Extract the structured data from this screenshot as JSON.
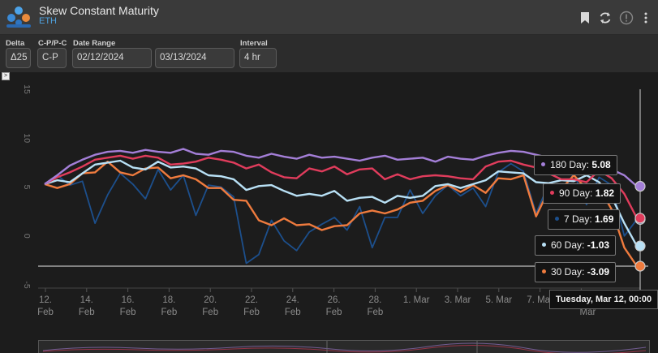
{
  "app": {
    "title": "Skew Constant Maturity",
    "asset": "ETH"
  },
  "controls": {
    "delta": {
      "label": "Delta",
      "value": "Δ25"
    },
    "cp": {
      "label": "C-P/P-C",
      "value": "C-P"
    },
    "date_range": {
      "label": "Date Range",
      "start": "02/12/2024",
      "end": "03/13/2024"
    },
    "interval": {
      "label": "Interval",
      "value": "4 hr"
    }
  },
  "toolbar_icons": [
    "bookmark-icon",
    "refresh-icon",
    "info-icon",
    "more-icon"
  ],
  "expand_label": ">",
  "chart_data": {
    "type": "line",
    "ylim": [
      -5,
      15
    ],
    "y_ticks": [
      "15",
      "10",
      "5",
      "0",
      "-5"
    ],
    "x_ticks": [
      {
        "line1": "12.",
        "line2": "Feb"
      },
      {
        "line1": "14.",
        "line2": "Feb"
      },
      {
        "line1": "16.",
        "line2": "Feb"
      },
      {
        "line1": "18.",
        "line2": "Feb"
      },
      {
        "line1": "20.",
        "line2": "Feb"
      },
      {
        "line1": "22.",
        "line2": "Feb"
      },
      {
        "line1": "24.",
        "line2": "Feb"
      },
      {
        "line1": "26.",
        "line2": "Feb"
      },
      {
        "line1": "28.",
        "line2": "Feb"
      },
      {
        "line1": "1. Mar",
        "line2": ""
      },
      {
        "line1": "3. Mar",
        "line2": ""
      },
      {
        "line1": "5. Mar",
        "line2": ""
      },
      {
        "line1": "7. Mar",
        "line2": ""
      },
      {
        "line1": "",
        "line2": "Mar"
      }
    ],
    "hover_date": "Tuesday, Mar 12, 00:00",
    "series": [
      {
        "name": "180 Day",
        "color": "#a47fd8",
        "current": "5.08",
        "values": [
          5.3,
          6.2,
          7.2,
          7.8,
          8.3,
          8.6,
          8.7,
          8.5,
          8.8,
          8.6,
          8.5,
          8.9,
          8.4,
          8.3,
          8.7,
          8.6,
          8.2,
          8.0,
          8.4,
          8.1,
          7.9,
          8.3,
          8.0,
          8.1,
          7.9,
          7.7,
          8.0,
          8.2,
          7.8,
          7.9,
          8.0,
          7.6,
          8.1,
          7.9,
          7.8,
          8.2,
          8.5,
          8.7,
          8.6,
          8.3,
          8.0,
          7.7,
          7.6,
          7.2,
          7.0,
          6.8,
          6.2,
          5.08
        ]
      },
      {
        "name": "90 Day",
        "color": "#e03c5c",
        "current": "1.82",
        "values": [
          5.3,
          6.0,
          6.5,
          7.1,
          7.8,
          8.0,
          8.2,
          7.9,
          8.2,
          8.0,
          7.3,
          7.4,
          7.6,
          8.0,
          7.8,
          7.5,
          6.9,
          7.3,
          6.5,
          6.0,
          5.9,
          6.9,
          6.6,
          7.1,
          6.3,
          6.8,
          6.9,
          5.8,
          6.3,
          5.8,
          6.1,
          6.2,
          6.1,
          5.9,
          5.8,
          7.1,
          7.6,
          7.7,
          7.3,
          7.0,
          6.4,
          5.8,
          5.8,
          5.5,
          6.7,
          5.9,
          4.3,
          1.82
        ]
      },
      {
        "name": "7 Day",
        "color": "#1c4f8c",
        "current": "1.69",
        "values": [
          5.3,
          6.2,
          5.2,
          5.6,
          1.3,
          4.2,
          6.4,
          5.3,
          3.8,
          6.8,
          4.7,
          6.2,
          2.1,
          5.2,
          5.0,
          4.0,
          -2.8,
          -1.9,
          1.6,
          -0.5,
          -1.5,
          0.4,
          1.2,
          1.9,
          0.6,
          3.0,
          -1.2,
          1.9,
          1.9,
          4.7,
          2.3,
          4.1,
          5.2,
          4.1,
          4.9,
          3.0,
          6.5,
          7.4,
          6.6,
          2.3,
          5.3,
          4.3,
          6.4,
          3.2,
          6.0,
          5.2,
          0.0,
          1.69
        ]
      },
      {
        "name": "60 Day",
        "color": "#b8e0f5",
        "current": "-1.03",
        "values": [
          5.3,
          5.7,
          5.5,
          6.4,
          7.3,
          7.5,
          7.7,
          7.0,
          6.8,
          7.6,
          7.0,
          7.1,
          6.9,
          6.2,
          6.1,
          5.8,
          4.7,
          5.1,
          5.2,
          4.6,
          4.1,
          4.3,
          4.1,
          4.6,
          3.6,
          3.9,
          4.0,
          3.4,
          4.1,
          3.9,
          4.1,
          5.1,
          5.3,
          4.9,
          5.3,
          5.7,
          6.6,
          6.5,
          6.4,
          5.5,
          5.4,
          5.7,
          5.6,
          6.2,
          5.5,
          4.0,
          1.3,
          -1.03
        ]
      },
      {
        "name": "30 Day",
        "color": "#ef7b3e",
        "current": "-3.09",
        "values": [
          5.3,
          4.9,
          5.3,
          6.4,
          6.5,
          7.6,
          6.5,
          6.2,
          6.9,
          7.0,
          5.9,
          6.2,
          5.8,
          4.9,
          4.9,
          3.7,
          3.6,
          1.6,
          1.1,
          1.8,
          1.1,
          1.2,
          0.6,
          1.0,
          1.1,
          2.3,
          2.6,
          2.3,
          2.7,
          3.4,
          3.6,
          4.6,
          5.2,
          4.5,
          5.2,
          4.4,
          5.9,
          5.8,
          6.2,
          2.0,
          4.7,
          4.8,
          6.2,
          4.8,
          5.0,
          2.7,
          -1.2,
          -3.09
        ]
      }
    ],
    "crosshair_value": -3.09
  }
}
